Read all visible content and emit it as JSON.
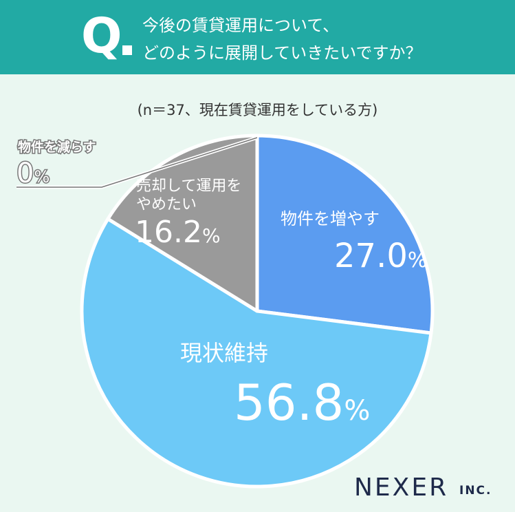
{
  "header": {
    "q_letter": "Q",
    "question_line1": "今後の賃貸運用について、",
    "question_line2": "どのように展開していきたいですか？"
  },
  "sample_note": "(n＝37、現在賃貸運用をしている方)",
  "brand": {
    "name": "NEXER",
    "suffix": "INC."
  },
  "colors": {
    "header_bg": "#22aaa4",
    "background": "#eaf7f1",
    "increase": "#5b9cf0",
    "maintain": "#6dc9f7",
    "sell": "#9a9a9a",
    "decrease": "#9a9a9a",
    "label": "#ffffff",
    "outside_label": "#666666"
  },
  "chart_data": {
    "type": "pie",
    "title": "",
    "start_angle_deg": 0,
    "direction": "clockwise",
    "slices": [
      {
        "label": "物件を増やす",
        "value": 27.0,
        "value_text": "27.0",
        "unit": "%",
        "color": "#5b9cf0"
      },
      {
        "label": "現状維持",
        "value": 56.8,
        "value_text": "56.8",
        "unit": "%",
        "color": "#6dc9f7"
      },
      {
        "label": "売却して運用をやめたい",
        "value": 16.2,
        "value_text": "16.2",
        "unit": "%",
        "color": "#9a9a9a"
      },
      {
        "label": "物件を減らす",
        "value": 0,
        "value_text": "0",
        "unit": "%",
        "color": "#9a9a9a"
      }
    ]
  }
}
